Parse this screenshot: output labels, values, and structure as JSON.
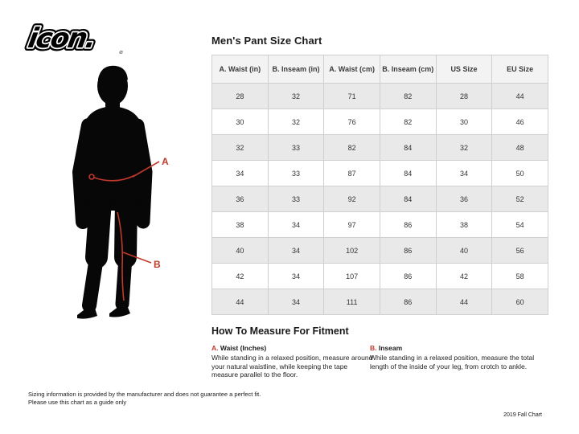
{
  "brand": {
    "logo_text": "icon.",
    "registered_mark": "®"
  },
  "figure": {
    "label_a": "A",
    "label_b": "B",
    "annotation_color": "#c0392b",
    "silhouette_color": "#070707"
  },
  "size_chart": {
    "title": "Men's Pant Size Chart",
    "columns": [
      "A. Waist (in)",
      "B. Inseam (in)",
      "A. Waist (cm)",
      "B. Inseam (cm)",
      "US Size",
      "EU Size"
    ],
    "rows": [
      [
        "28",
        "32",
        "71",
        "82",
        "28",
        "44"
      ],
      [
        "30",
        "32",
        "76",
        "82",
        "30",
        "46"
      ],
      [
        "32",
        "33",
        "82",
        "84",
        "32",
        "48"
      ],
      [
        "34",
        "33",
        "87",
        "84",
        "34",
        "50"
      ],
      [
        "36",
        "33",
        "92",
        "84",
        "36",
        "52"
      ],
      [
        "38",
        "34",
        "97",
        "86",
        "38",
        "54"
      ],
      [
        "40",
        "34",
        "102",
        "86",
        "40",
        "56"
      ],
      [
        "42",
        "34",
        "107",
        "86",
        "42",
        "58"
      ],
      [
        "44",
        "34",
        "111",
        "86",
        "44",
        "60"
      ]
    ],
    "colors": {
      "header_bg": "#f3f3f3",
      "stripe_gray": "#e9e9e9",
      "border": "#cfcfcf"
    }
  },
  "how_to_measure": {
    "heading": "How To Measure For Fitment",
    "items": [
      {
        "label_prefix": "A.",
        "label": "Waist (Inches)",
        "text": "While standing in a relaxed position, measure around your natural waistline, while keeping the tape measure parallel to the floor."
      },
      {
        "label_prefix": "B.",
        "label": "Inseam",
        "text": "While standing in a relaxed position, measure the total length of the inside of your leg, from crotch to ankle."
      }
    ]
  },
  "footer": {
    "disclaimer_line1": "Sizing information is provided by the manufacturer and does not guarantee a perfect fit.",
    "disclaimer_line2": "Please use this chart as a guide only",
    "chart_version": "2019 Fall Chart"
  }
}
